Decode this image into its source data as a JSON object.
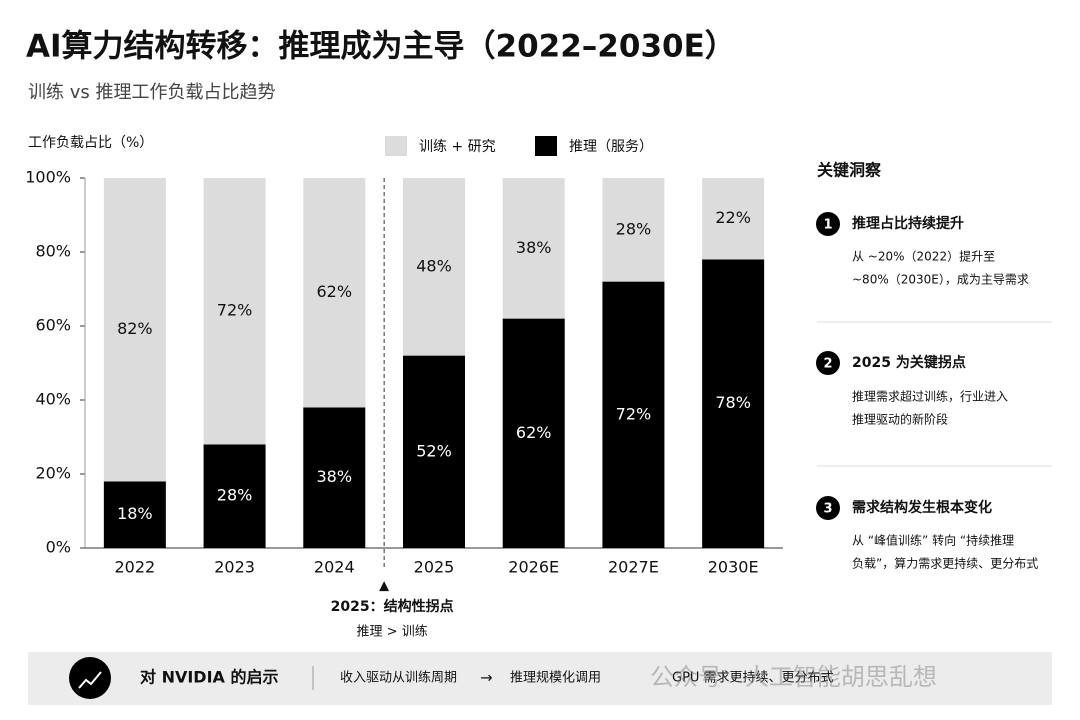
{
  "chart_data": {
    "type": "stacked_bar",
    "title": "AI算力结构转移：推理成为主导（2022–2030E）",
    "subtitle": "训练 vs 推理工作负载占比趋势",
    "y_label": "工作负载占比（%）",
    "categories": [
      "2022",
      "2023",
      "2024",
      "2025",
      "2026E",
      "2027E",
      "2030E"
    ],
    "series": [
      {
        "name": "训练 + 研究",
        "color": "#dcdcdc",
        "values": [
          82,
          72,
          62,
          48,
          38,
          28,
          22
        ],
        "value_labels": [
          "82%",
          "72%",
          "62%",
          "48%",
          "38%",
          "28%",
          "22%"
        ]
      },
      {
        "name": "推理（服务）",
        "color": "#000000",
        "values": [
          18,
          28,
          38,
          52,
          62,
          72,
          78
        ],
        "value_labels": [
          "18%",
          "28%",
          "38%",
          "52%",
          "62%",
          "72%",
          "78%"
        ]
      }
    ],
    "ylim": [
      0,
      100
    ],
    "yticks": [
      {
        "value": 0,
        "label": "0%"
      },
      {
        "value": 20,
        "label": "20%"
      },
      {
        "value": 40,
        "label": "40%"
      },
      {
        "value": 60,
        "label": "60%"
      },
      {
        "value": 80,
        "label": "80%"
      },
      {
        "value": 100,
        "label": "100%"
      }
    ],
    "annotation": {
      "marker": "▲",
      "title": "2025：结构性拐点",
      "text": "推理 > 训练"
    }
  },
  "insights": {
    "title": "关键洞察",
    "items": [
      {
        "number": "1",
        "title": "推理占比持续提升",
        "lines": [
          "从 ~20%（2022）提升至",
          "~80%（2030E），成为主导需求"
        ]
      },
      {
        "number": "2",
        "title": "2025 为关键拐点",
        "lines": [
          "推理需求超过训练，行业进入",
          "推理驱动的新阶段"
        ]
      },
      {
        "number": "3",
        "title": "需求结构发生根本变化",
        "lines": [
          "从 “峰值训练” 转向 “持续推理",
          "负载”，算力需求更持续、更分布式"
        ]
      }
    ]
  },
  "footer": {
    "title": "对 NVIDIA 的启示",
    "from": "收入驱动从训练周期",
    "arrow": "→",
    "to": "推理规模化调用",
    "note": "GPU 需求更持续、更分布式"
  },
  "watermark": "公众号 · 人工智能胡思乱想"
}
